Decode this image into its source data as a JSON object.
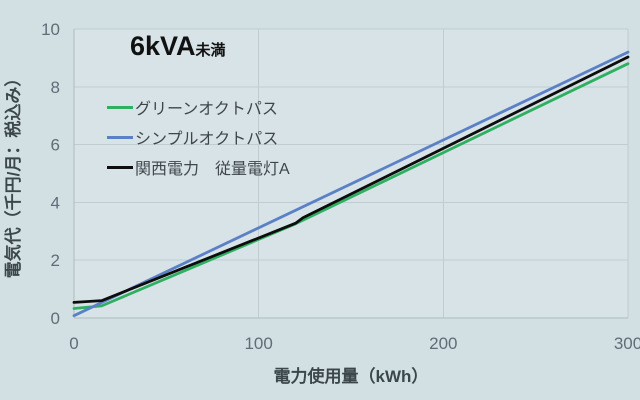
{
  "title": {
    "main": "6kVA",
    "suffix": "未満"
  },
  "colors": {
    "background": "#d2e0e4",
    "plot_fill": "#d7e3e7",
    "gridline": "#bfcdd1",
    "axis_line": "#aebcc1",
    "tick_label": "#5f6e76",
    "axis_title": "#3c474c",
    "legend_label": "#3f464a",
    "title": "#111111"
  },
  "chart_data": {
    "type": "line",
    "title": "6kVA未満",
    "xlabel": "電力使用量（kWh）",
    "ylabel": "電気代（千円/月：税込み）",
    "xlim": [
      0,
      300
    ],
    "ylim": [
      0,
      10
    ],
    "x_ticks": [
      0,
      100,
      200,
      300
    ],
    "y_ticks": [
      0,
      2,
      4,
      6,
      8,
      10
    ],
    "grid": true,
    "legend_position": "inside-top-left",
    "series": [
      {
        "name": "グリーンオクトパス",
        "color": "#2fb061",
        "points": [
          [
            0,
            0.33
          ],
          [
            15,
            0.42
          ],
          [
            120,
            3.26
          ],
          [
            300,
            8.8
          ]
        ]
      },
      {
        "name": "シンプルオクトパス",
        "color": "#5b80c5",
        "points": [
          [
            0,
            0.08
          ],
          [
            300,
            9.2
          ]
        ]
      },
      {
        "name": "関西電力　従量電灯A",
        "color": "#0d0d0d",
        "points": [
          [
            0,
            0.54
          ],
          [
            15,
            0.6
          ],
          [
            120,
            3.28
          ],
          [
            124,
            3.47
          ],
          [
            300,
            9.03
          ]
        ]
      }
    ]
  }
}
